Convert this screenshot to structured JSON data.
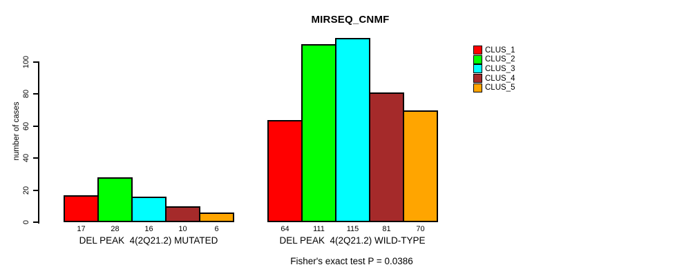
{
  "chart_data": {
    "type": "bar",
    "title": "MIRSEQ_CNMF",
    "ylabel": "number of cases",
    "xlabel": "",
    "subtitle": "Fisher's exact test P = 0.0386",
    "yticks": [
      0,
      20,
      40,
      60,
      80,
      100
    ],
    "ylim": [
      0,
      117
    ],
    "grid": false,
    "legend_position": "right-outside",
    "background_color": "#ffffff",
    "bar_border_color": "#000000",
    "categories": [
      "DEL PEAK  4(2Q21.2) MUTATED",
      "DEL PEAK  4(2Q21.2) WILD-TYPE"
    ],
    "series": [
      {
        "name": "CLUS_1",
        "color": "#FF0000",
        "values": [
          17,
          64
        ]
      },
      {
        "name": "CLUS_2",
        "color": "#00FF00",
        "values": [
          28,
          111
        ]
      },
      {
        "name": "CLUS_3",
        "color": "#00FFFF",
        "values": [
          16,
          115
        ]
      },
      {
        "name": "CLUS_4",
        "color": "#A52A2A",
        "values": [
          10,
          81
        ]
      },
      {
        "name": "CLUS_5",
        "color": "#FFA500",
        "values": [
          6,
          70
        ]
      }
    ]
  }
}
